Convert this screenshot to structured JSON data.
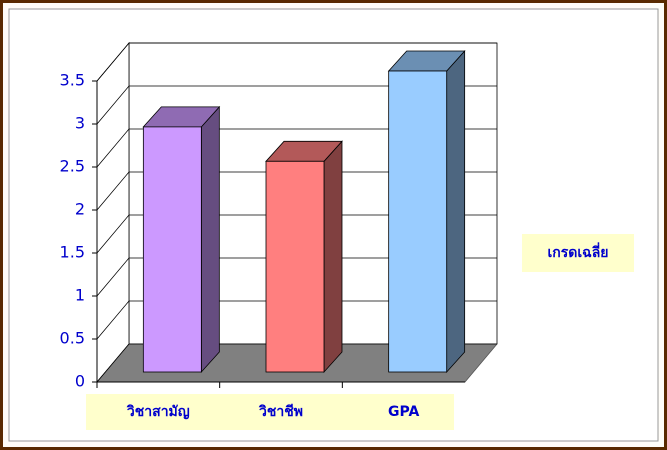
{
  "chart_data": {
    "type": "bar3d",
    "categories": [
      "วิชาสามัญ",
      "วิชาชีพ",
      "GPA"
    ],
    "series": [
      {
        "name": "เกรดเฉลี่ย",
        "values": [
          2.85,
          2.45,
          3.5
        ]
      }
    ],
    "colors": [
      "#cc99ff",
      "#ff7f7f",
      "#99ccff"
    ],
    "ylim": [
      0,
      3.5
    ],
    "yticks": [
      0,
      0.5,
      1,
      1.5,
      2,
      2.5,
      3,
      3.5
    ],
    "grid": true
  }
}
